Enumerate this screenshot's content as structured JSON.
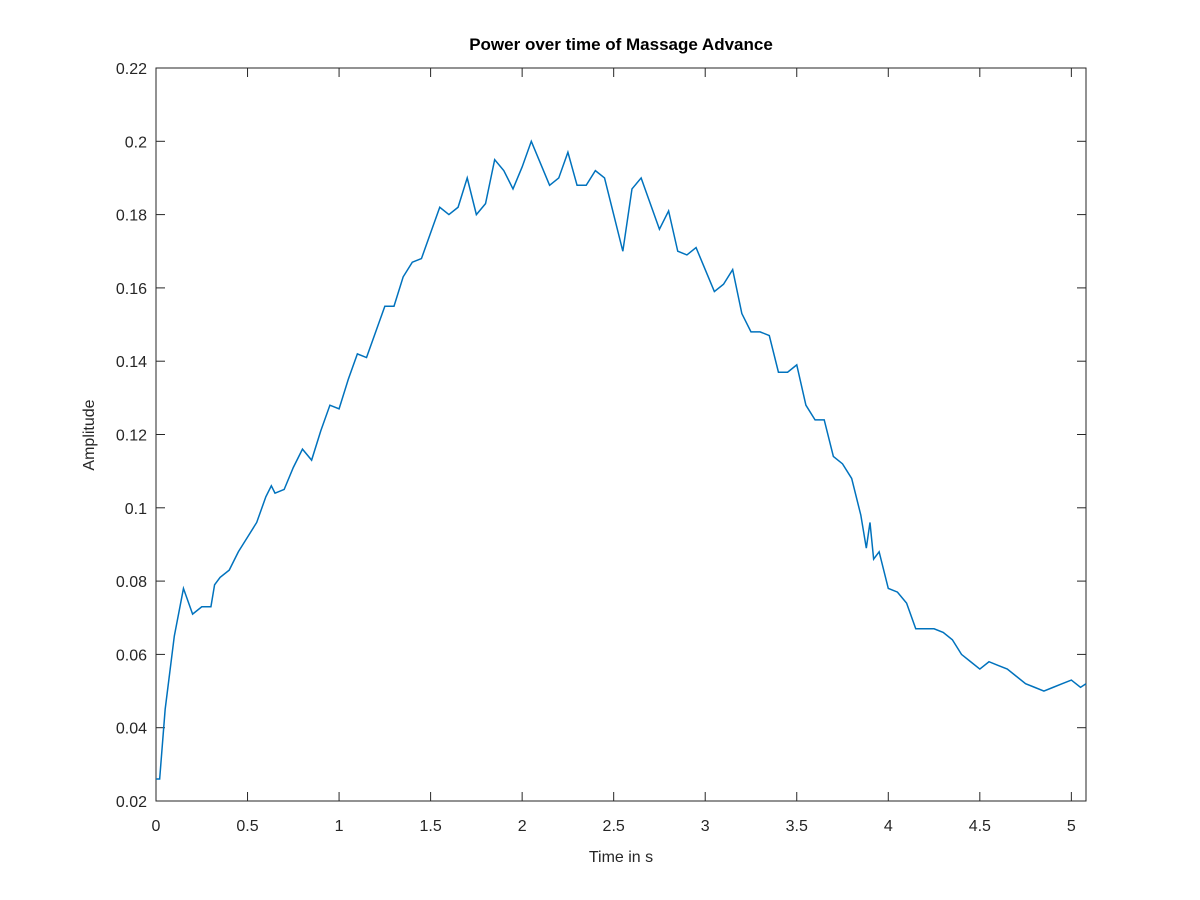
{
  "chart_data": {
    "type": "line",
    "title": "Power over time of Massage Advance",
    "x_label": "Time in s",
    "y_label": "Amplitude",
    "xlim": [
      0,
      5.08
    ],
    "ylim": [
      0.02,
      0.22
    ],
    "xticks": [
      0,
      0.5,
      1,
      1.5,
      2,
      2.5,
      3,
      3.5,
      4,
      4.5,
      5
    ],
    "yticks": [
      0.02,
      0.04,
      0.06,
      0.08,
      0.1,
      0.12,
      0.14,
      0.16,
      0.18,
      0.2,
      0.22
    ],
    "series": [
      {
        "name": "Power",
        "color": "#0072bd",
        "x": [
          0,
          0.02,
          0.05,
          0.1,
          0.15,
          0.2,
          0.25,
          0.3,
          0.32,
          0.35,
          0.4,
          0.45,
          0.5,
          0.55,
          0.6,
          0.63,
          0.65,
          0.7,
          0.75,
          0.8,
          0.85,
          0.9,
          0.95,
          1.0,
          1.05,
          1.1,
          1.15,
          1.2,
          1.25,
          1.3,
          1.35,
          1.4,
          1.45,
          1.5,
          1.55,
          1.6,
          1.65,
          1.7,
          1.75,
          1.8,
          1.85,
          1.9,
          1.95,
          2.0,
          2.05,
          2.1,
          2.15,
          2.2,
          2.25,
          2.3,
          2.35,
          2.4,
          2.45,
          2.5,
          2.55,
          2.6,
          2.65,
          2.7,
          2.75,
          2.8,
          2.85,
          2.9,
          2.95,
          3.0,
          3.05,
          3.1,
          3.15,
          3.2,
          3.25,
          3.3,
          3.35,
          3.4,
          3.45,
          3.5,
          3.55,
          3.6,
          3.65,
          3.7,
          3.75,
          3.8,
          3.85,
          3.88,
          3.9,
          3.92,
          3.95,
          4.0,
          4.05,
          4.1,
          4.15,
          4.2,
          4.25,
          4.3,
          4.35,
          4.4,
          4.45,
          4.5,
          4.55,
          4.6,
          4.65,
          4.7,
          4.75,
          4.8,
          4.85,
          4.9,
          4.95,
          5.0,
          5.05,
          5.08
        ],
        "values": [
          0.026,
          0.026,
          0.045,
          0.065,
          0.078,
          0.071,
          0.073,
          0.073,
          0.079,
          0.081,
          0.083,
          0.088,
          0.092,
          0.096,
          0.103,
          0.106,
          0.104,
          0.105,
          0.111,
          0.116,
          0.113,
          0.121,
          0.128,
          0.127,
          0.135,
          0.142,
          0.141,
          0.148,
          0.155,
          0.155,
          0.163,
          0.167,
          0.168,
          0.175,
          0.182,
          0.18,
          0.182,
          0.19,
          0.18,
          0.183,
          0.195,
          0.192,
          0.187,
          0.193,
          0.2,
          0.194,
          0.188,
          0.19,
          0.197,
          0.188,
          0.188,
          0.192,
          0.19,
          0.18,
          0.17,
          0.187,
          0.19,
          0.183,
          0.176,
          0.181,
          0.17,
          0.169,
          0.171,
          0.165,
          0.159,
          0.161,
          0.165,
          0.153,
          0.148,
          0.148,
          0.147,
          0.137,
          0.137,
          0.139,
          0.128,
          0.124,
          0.124,
          0.114,
          0.112,
          0.108,
          0.098,
          0.089,
          0.096,
          0.086,
          0.088,
          0.078,
          0.077,
          0.074,
          0.067,
          0.067,
          0.067,
          0.066,
          0.064,
          0.06,
          0.058,
          0.056,
          0.058,
          0.057,
          0.056,
          0.054,
          0.052,
          0.051,
          0.05,
          0.051,
          0.052,
          0.053,
          0.051,
          0.052
        ]
      }
    ]
  }
}
